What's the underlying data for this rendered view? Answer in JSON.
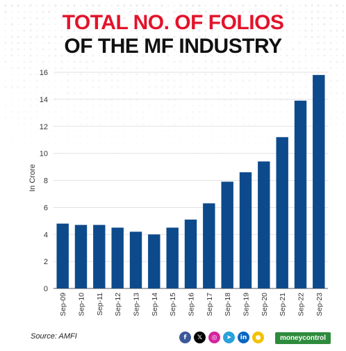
{
  "header": {
    "title_line1": "TOTAL NO. OF FOLIOS",
    "title_line2": "OF THE MF INDUSTRY"
  },
  "footer": {
    "source": "Source: AMFI",
    "brand": "moneycontrol",
    "social_icons": [
      "facebook-icon",
      "x-icon",
      "instagram-icon",
      "telegram-icon",
      "linkedin-icon",
      "koo-icon"
    ]
  },
  "colors": {
    "title_red": "#e3132b",
    "bar": "#0d4a8c",
    "brand_green": "#2e8b3c"
  },
  "chart_data": {
    "type": "bar",
    "title": "TOTAL NO. OF FOLIOS OF THE MF INDUSTRY",
    "ylabel": "In Crore",
    "xlabel": "",
    "categories": [
      "Sep-09",
      "Sep-10",
      "Sep-11",
      "Sep-12",
      "Sep-13",
      "Sep-14",
      "Sep-15",
      "Sep-16",
      "Sep-17",
      "Sep-18",
      "Sep-19",
      "Sep-20",
      "Sep-21",
      "Sep-22",
      "Sep-23"
    ],
    "values": [
      4.8,
      4.7,
      4.7,
      4.5,
      4.2,
      4.0,
      4.5,
      5.1,
      6.3,
      7.9,
      8.6,
      9.4,
      11.2,
      13.9,
      15.8
    ],
    "ylim": [
      0,
      16
    ],
    "yticks": [
      0,
      2,
      4,
      6,
      8,
      10,
      12,
      14,
      16
    ],
    "grid": true,
    "legend": "none"
  }
}
